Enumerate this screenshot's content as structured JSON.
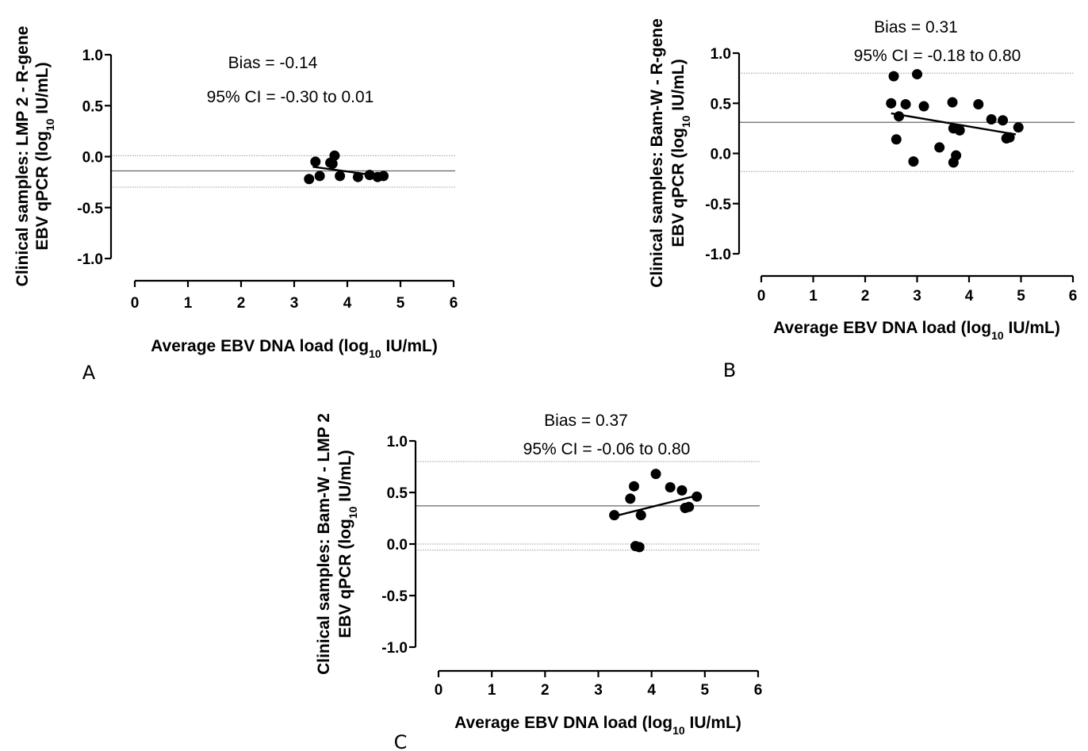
{
  "chart_data": [
    {
      "id": "A",
      "type": "scatter",
      "panel_label": "A",
      "xlabel": "Average EBV DNA load (log",
      "xlabel_sub": "10",
      "xlabel_tail": " IU/mL)",
      "ylabel_line1": "Clinical samples: LMP 2 - R-gene",
      "ylabel_line2": "EBV qPCR (log",
      "ylabel_sub": "10",
      "ylabel_tail": " IU/mL)",
      "annotations": [
        "Bias = -0.14",
        "95% CI = -0.30 to 0.01"
      ],
      "xlim": [
        0,
        6
      ],
      "ylim": [
        -1.0,
        1.0
      ],
      "x_ticks": [
        "0",
        "1",
        "2",
        "3",
        "4",
        "5",
        "6"
      ],
      "y_ticks": [
        "1.0",
        "0.5",
        "0.0",
        "-0.5",
        "-1.0"
      ],
      "bias": -0.14,
      "loa": [
        -0.3,
        0.01
      ],
      "zero_line": false,
      "regression": {
        "x": [
          3.35,
          4.75
        ],
        "y": [
          -0.1,
          -0.2
        ]
      },
      "points": [
        {
          "x": 3.28,
          "y": -0.22
        },
        {
          "x": 3.4,
          "y": -0.05
        },
        {
          "x": 3.48,
          "y": -0.19
        },
        {
          "x": 3.68,
          "y": -0.06
        },
        {
          "x": 3.72,
          "y": -0.07
        },
        {
          "x": 3.76,
          "y": 0.01
        },
        {
          "x": 3.86,
          "y": -0.19
        },
        {
          "x": 4.2,
          "y": -0.2
        },
        {
          "x": 4.42,
          "y": -0.18
        },
        {
          "x": 4.57,
          "y": -0.2
        },
        {
          "x": 4.68,
          "y": -0.19
        }
      ]
    },
    {
      "id": "B",
      "type": "scatter",
      "panel_label": "B",
      "xlabel": "Average EBV DNA load (log",
      "xlabel_sub": "10",
      "xlabel_tail": " IU/mL)",
      "ylabel_line1": "Clinical samples: Bam-W - R-gene",
      "ylabel_line2": "EBV qPCR (log",
      "ylabel_sub": "10",
      "ylabel_tail": " IU/mL)",
      "annotations": [
        "Bias = 0.31",
        "95% CI = -0.18 to 0.80"
      ],
      "xlim": [
        0,
        6
      ],
      "ylim": [
        -1.0,
        1.0
      ],
      "x_ticks": [
        "0",
        "1",
        "2",
        "3",
        "4",
        "5",
        "6"
      ],
      "y_ticks": [
        "1.0",
        "0.5",
        "0.0",
        "-0.5",
        "-1.0"
      ],
      "bias": 0.31,
      "loa": [
        -0.18,
        0.8
      ],
      "zero_line": false,
      "regression": {
        "x": [
          2.5,
          4.9
        ],
        "y": [
          0.4,
          0.19
        ]
      },
      "points": [
        {
          "x": 2.5,
          "y": 0.5
        },
        {
          "x": 2.55,
          "y": 0.77
        },
        {
          "x": 2.6,
          "y": 0.14
        },
        {
          "x": 2.65,
          "y": 0.37
        },
        {
          "x": 2.78,
          "y": 0.49
        },
        {
          "x": 2.93,
          "y": -0.08
        },
        {
          "x": 3.0,
          "y": 0.79
        },
        {
          "x": 3.13,
          "y": 0.47
        },
        {
          "x": 3.43,
          "y": 0.06
        },
        {
          "x": 3.68,
          "y": 0.51
        },
        {
          "x": 3.7,
          "y": 0.25
        },
        {
          "x": 3.7,
          "y": -0.09
        },
        {
          "x": 3.75,
          "y": -0.02
        },
        {
          "x": 3.82,
          "y": 0.23
        },
        {
          "x": 4.18,
          "y": 0.49
        },
        {
          "x": 4.43,
          "y": 0.34
        },
        {
          "x": 4.65,
          "y": 0.33
        },
        {
          "x": 4.72,
          "y": 0.15
        },
        {
          "x": 4.78,
          "y": 0.16
        },
        {
          "x": 4.95,
          "y": 0.26
        }
      ]
    },
    {
      "id": "C",
      "type": "scatter",
      "panel_label": "C",
      "xlabel": "Average EBV DNA load (log",
      "xlabel_sub": "10",
      "xlabel_tail": " IU/mL)",
      "ylabel_line1": "Clinical samples: Bam-W - LMP 2",
      "ylabel_line2": "EBV qPCR (log",
      "ylabel_sub": "10",
      "ylabel_tail": " IU/mL)",
      "annotations": [
        "Bias = 0.37",
        "95% CI = -0.06 to 0.80"
      ],
      "xlim": [
        0,
        6
      ],
      "ylim": [
        -1.0,
        1.0
      ],
      "x_ticks": [
        "0",
        "1",
        "2",
        "3",
        "4",
        "5",
        "6"
      ],
      "y_ticks": [
        "1.0",
        "0.5",
        "0.0",
        "-0.5",
        "-1.0"
      ],
      "bias": 0.37,
      "loa": [
        -0.06,
        0.8
      ],
      "zero_line": true,
      "regression": {
        "x": [
          3.3,
          4.85
        ],
        "y": [
          0.27,
          0.47
        ]
      },
      "points": [
        {
          "x": 3.3,
          "y": 0.28
        },
        {
          "x": 3.6,
          "y": 0.44
        },
        {
          "x": 3.67,
          "y": 0.56
        },
        {
          "x": 3.7,
          "y": -0.02
        },
        {
          "x": 3.77,
          "y": -0.03
        },
        {
          "x": 3.8,
          "y": 0.28
        },
        {
          "x": 4.08,
          "y": 0.68
        },
        {
          "x": 4.35,
          "y": 0.55
        },
        {
          "x": 4.57,
          "y": 0.52
        },
        {
          "x": 4.63,
          "y": 0.35
        },
        {
          "x": 4.7,
          "y": 0.36
        },
        {
          "x": 4.85,
          "y": 0.46
        }
      ]
    }
  ]
}
